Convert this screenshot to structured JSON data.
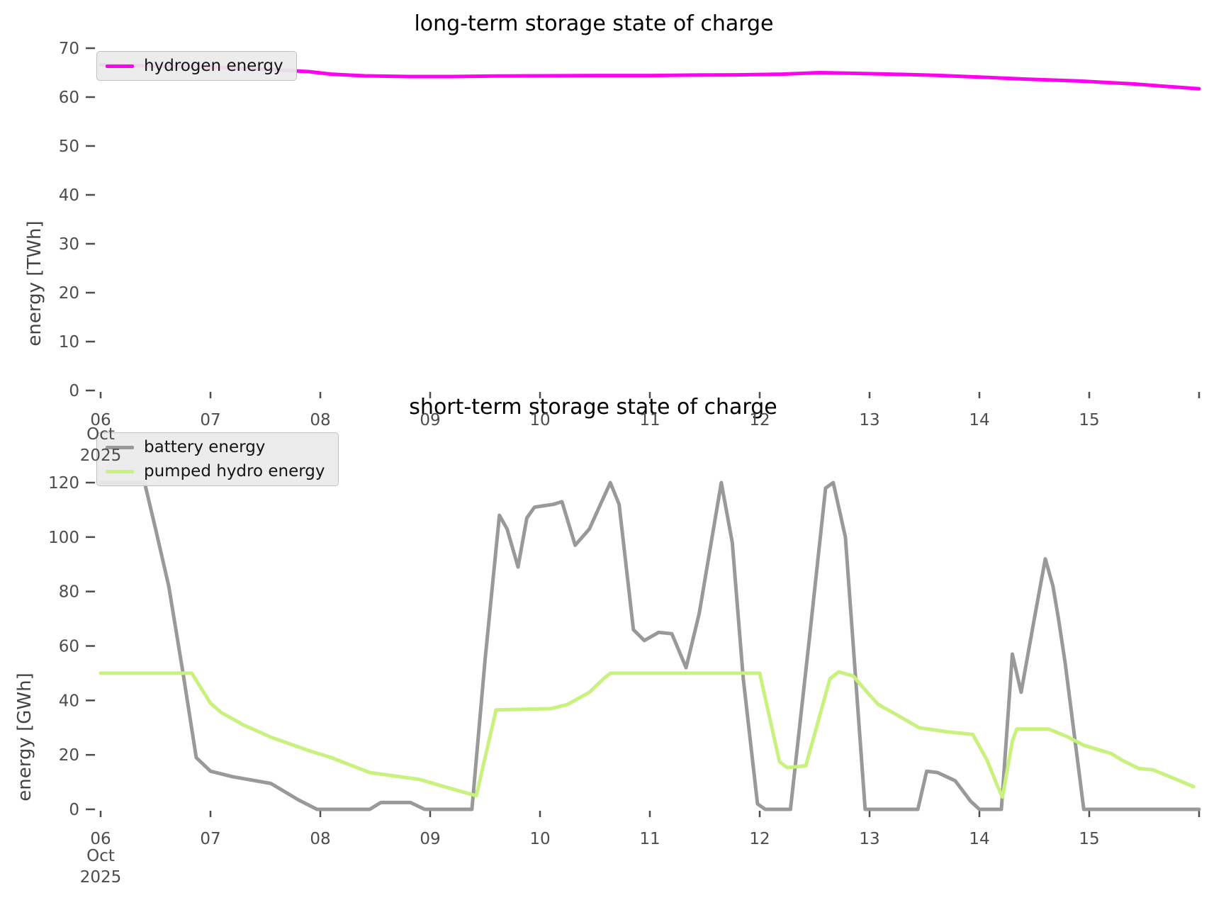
{
  "chart_data": [
    {
      "type": "line",
      "title": "long-term storage state of charge",
      "ylabel": "energy [TWh]",
      "xlabel": "",
      "x_unit": "day of October 2025",
      "x_range": [
        6,
        16
      ],
      "ylim": [
        0,
        70
      ],
      "y_ticks": [
        0,
        10,
        20,
        30,
        40,
        50,
        60,
        70
      ],
      "x_tick_days": [
        6,
        7,
        8,
        9,
        10,
        11,
        12,
        13,
        14,
        15,
        16
      ],
      "x_tick_labels": [
        "06",
        "07",
        "08",
        "09",
        "10",
        "11",
        "12",
        "13",
        "14",
        "15",
        ""
      ],
      "x_axis_month": "Oct",
      "x_axis_year": "2025",
      "grid": false,
      "legend_position": "upper left",
      "series": [
        {
          "name": "hydrogen energy",
          "color": "#FF00F2",
          "points": [
            [
              6.0,
              66.6
            ],
            [
              6.5,
              66.35
            ],
            [
              7.0,
              66.1
            ],
            [
              7.5,
              65.7
            ],
            [
              7.9,
              65.2
            ],
            [
              8.1,
              64.7
            ],
            [
              8.4,
              64.35
            ],
            [
              8.8,
              64.2
            ],
            [
              9.2,
              64.2
            ],
            [
              9.6,
              64.3
            ],
            [
              10.0,
              64.35
            ],
            [
              10.5,
              64.4
            ],
            [
              11.0,
              64.4
            ],
            [
              11.4,
              64.5
            ],
            [
              11.8,
              64.55
            ],
            [
              12.2,
              64.7
            ],
            [
              12.55,
              65.0
            ],
            [
              12.8,
              64.9
            ],
            [
              13.2,
              64.7
            ],
            [
              13.6,
              64.45
            ],
            [
              14.0,
              64.1
            ],
            [
              14.4,
              63.7
            ],
            [
              14.9,
              63.3
            ],
            [
              15.4,
              62.7
            ],
            [
              16.0,
              61.7
            ]
          ]
        }
      ]
    },
    {
      "type": "line",
      "title": "short-term storage state of charge",
      "ylabel": "energy [GWh]",
      "xlabel": "",
      "x_unit": "day of October 2025",
      "x_range": [
        6,
        16
      ],
      "ylim": [
        0,
        120
      ],
      "y_ticks": [
        0,
        20,
        40,
        60,
        80,
        100,
        120
      ],
      "x_tick_days": [
        6,
        7,
        8,
        9,
        10,
        11,
        12,
        13,
        14,
        15,
        16
      ],
      "x_tick_labels": [
        "06",
        "07",
        "08",
        "09",
        "10",
        "11",
        "12",
        "13",
        "14",
        "15",
        ""
      ],
      "x_axis_month": "Oct",
      "x_axis_year": "2025",
      "grid": false,
      "legend_position": "upper left",
      "series": [
        {
          "name": "battery energy",
          "color": "#999999",
          "points": [
            [
              6.0,
              120
            ],
            [
              6.4,
              120
            ],
            [
              6.5,
              103
            ],
            [
              6.62,
              82
            ],
            [
              6.75,
              50
            ],
            [
              6.87,
              19
            ],
            [
              7.0,
              14
            ],
            [
              7.2,
              12
            ],
            [
              7.55,
              9.5
            ],
            [
              7.8,
              3.5
            ],
            [
              7.97,
              0
            ],
            [
              8.45,
              0
            ],
            [
              8.55,
              2.5
            ],
            [
              8.82,
              2.5
            ],
            [
              8.95,
              0
            ],
            [
              9.38,
              0
            ],
            [
              9.5,
              55
            ],
            [
              9.63,
              108
            ],
            [
              9.7,
              103
            ],
            [
              9.8,
              89
            ],
            [
              9.88,
              107
            ],
            [
              9.95,
              111
            ],
            [
              10.12,
              112
            ],
            [
              10.2,
              113
            ],
            [
              10.32,
              97
            ],
            [
              10.45,
              103
            ],
            [
              10.55,
              112
            ],
            [
              10.64,
              120
            ],
            [
              10.72,
              112
            ],
            [
              10.85,
              66
            ],
            [
              10.95,
              62
            ],
            [
              11.08,
              65
            ],
            [
              11.2,
              64.5
            ],
            [
              11.33,
              52
            ],
            [
              11.45,
              72
            ],
            [
              11.65,
              120
            ],
            [
              11.75,
              98
            ],
            [
              11.85,
              48
            ],
            [
              11.98,
              2
            ],
            [
              12.05,
              0
            ],
            [
              12.28,
              0
            ],
            [
              12.45,
              62
            ],
            [
              12.6,
              118
            ],
            [
              12.67,
              120
            ],
            [
              12.78,
              100
            ],
            [
              12.96,
              0
            ],
            [
              13.44,
              0
            ],
            [
              13.52,
              14
            ],
            [
              13.62,
              13.5
            ],
            [
              13.78,
              10.5
            ],
            [
              13.92,
              3
            ],
            [
              14.0,
              0
            ],
            [
              14.2,
              0
            ],
            [
              14.3,
              57
            ],
            [
              14.38,
              43
            ],
            [
              14.5,
              70
            ],
            [
              14.6,
              92
            ],
            [
              14.67,
              82
            ],
            [
              14.72,
              70
            ],
            [
              14.78,
              54
            ],
            [
              14.95,
              0
            ],
            [
              15.5,
              0
            ],
            [
              16.0,
              0
            ]
          ]
        },
        {
          "name": "pumped hydro energy",
          "color": "#C8F17E",
          "points": [
            [
              6.0,
              50
            ],
            [
              6.83,
              50
            ],
            [
              7.0,
              39
            ],
            [
              7.1,
              35.5
            ],
            [
              7.3,
              31
            ],
            [
              7.55,
              26.5
            ],
            [
              7.9,
              21.5
            ],
            [
              8.1,
              19
            ],
            [
              8.45,
              13.5
            ],
            [
              8.9,
              11
            ],
            [
              9.2,
              7.5
            ],
            [
              9.42,
              5
            ],
            [
              9.6,
              36.5
            ],
            [
              10.1,
              37
            ],
            [
              10.25,
              38.5
            ],
            [
              10.45,
              43
            ],
            [
              10.58,
              48
            ],
            [
              10.64,
              50
            ],
            [
              12.0,
              50
            ],
            [
              12.18,
              17.5
            ],
            [
              12.25,
              15.3
            ],
            [
              12.42,
              16
            ],
            [
              12.64,
              48
            ],
            [
              12.72,
              50.5
            ],
            [
              12.85,
              49
            ],
            [
              13.0,
              42
            ],
            [
              13.08,
              38.5
            ],
            [
              13.3,
              33.5
            ],
            [
              13.45,
              30
            ],
            [
              13.7,
              28.5
            ],
            [
              13.94,
              27.5
            ],
            [
              14.07,
              18
            ],
            [
              14.16,
              9
            ],
            [
              14.21,
              4.5
            ],
            [
              14.3,
              25
            ],
            [
              14.34,
              29.5
            ],
            [
              14.63,
              29.5
            ],
            [
              14.72,
              28
            ],
            [
              14.81,
              26.5
            ],
            [
              14.95,
              23.5
            ],
            [
              15.2,
              20.5
            ],
            [
              15.3,
              18
            ],
            [
              15.45,
              15
            ],
            [
              15.58,
              14.5
            ],
            [
              15.77,
              11.4
            ],
            [
              15.95,
              8.3
            ]
          ]
        }
      ]
    }
  ]
}
